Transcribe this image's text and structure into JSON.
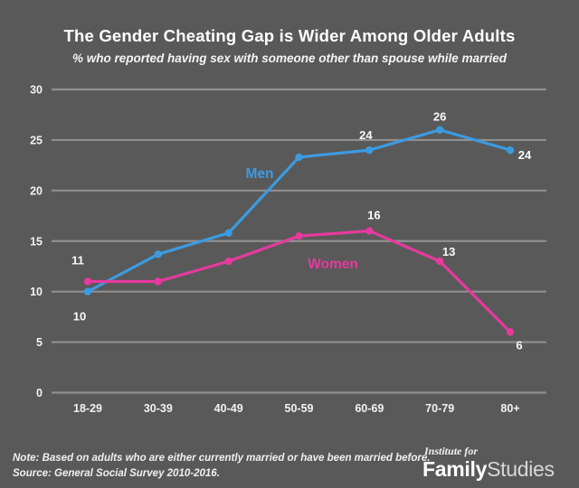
{
  "title": "The Gender Cheating Gap is Wider Among Older Adults",
  "subtitle": "% who reported having sex with someone other than spouse while married",
  "colors": {
    "background": "#595959",
    "gridline": "#909090",
    "text": "#F5F5F5",
    "men": "#3C9BE0",
    "women": "#E63A9E"
  },
  "chart_data": {
    "type": "line",
    "categories": [
      "18-29",
      "30-39",
      "40-49",
      "50-59",
      "60-69",
      "70-79",
      "80+"
    ],
    "series": [
      {
        "name": "Men",
        "color": "#3C9BE0",
        "values": [
          10,
          13.7,
          15.8,
          23.3,
          24,
          26,
          24
        ],
        "point_labels": [
          {
            "index": 0,
            "text": "10"
          },
          {
            "index": 4,
            "text": "24"
          },
          {
            "index": 5,
            "text": "26"
          },
          {
            "index": 6,
            "text": "24"
          }
        ]
      },
      {
        "name": "Women",
        "color": "#E63A9E",
        "values": [
          11,
          11,
          13,
          15.5,
          16,
          13,
          6
        ],
        "point_labels": [
          {
            "index": 0,
            "text": "11"
          },
          {
            "index": 4,
            "text": "16"
          },
          {
            "index": 5,
            "text": "13"
          },
          {
            "index": 6,
            "text": "6"
          }
        ]
      }
    ],
    "xlabel": "",
    "ylabel": "",
    "ylim": [
      0,
      30
    ],
    "yticks": [
      30,
      25,
      20,
      15,
      10,
      5,
      0
    ],
    "grid": true,
    "legend": "inline series labels"
  },
  "footer": {
    "note": "Note: Based on adults who are either currently married or have been married before.",
    "source": "Source: General Social Survey 2010-2016."
  },
  "logo": {
    "line1": "Institute for",
    "family": "Family",
    "studies": "Studies"
  }
}
